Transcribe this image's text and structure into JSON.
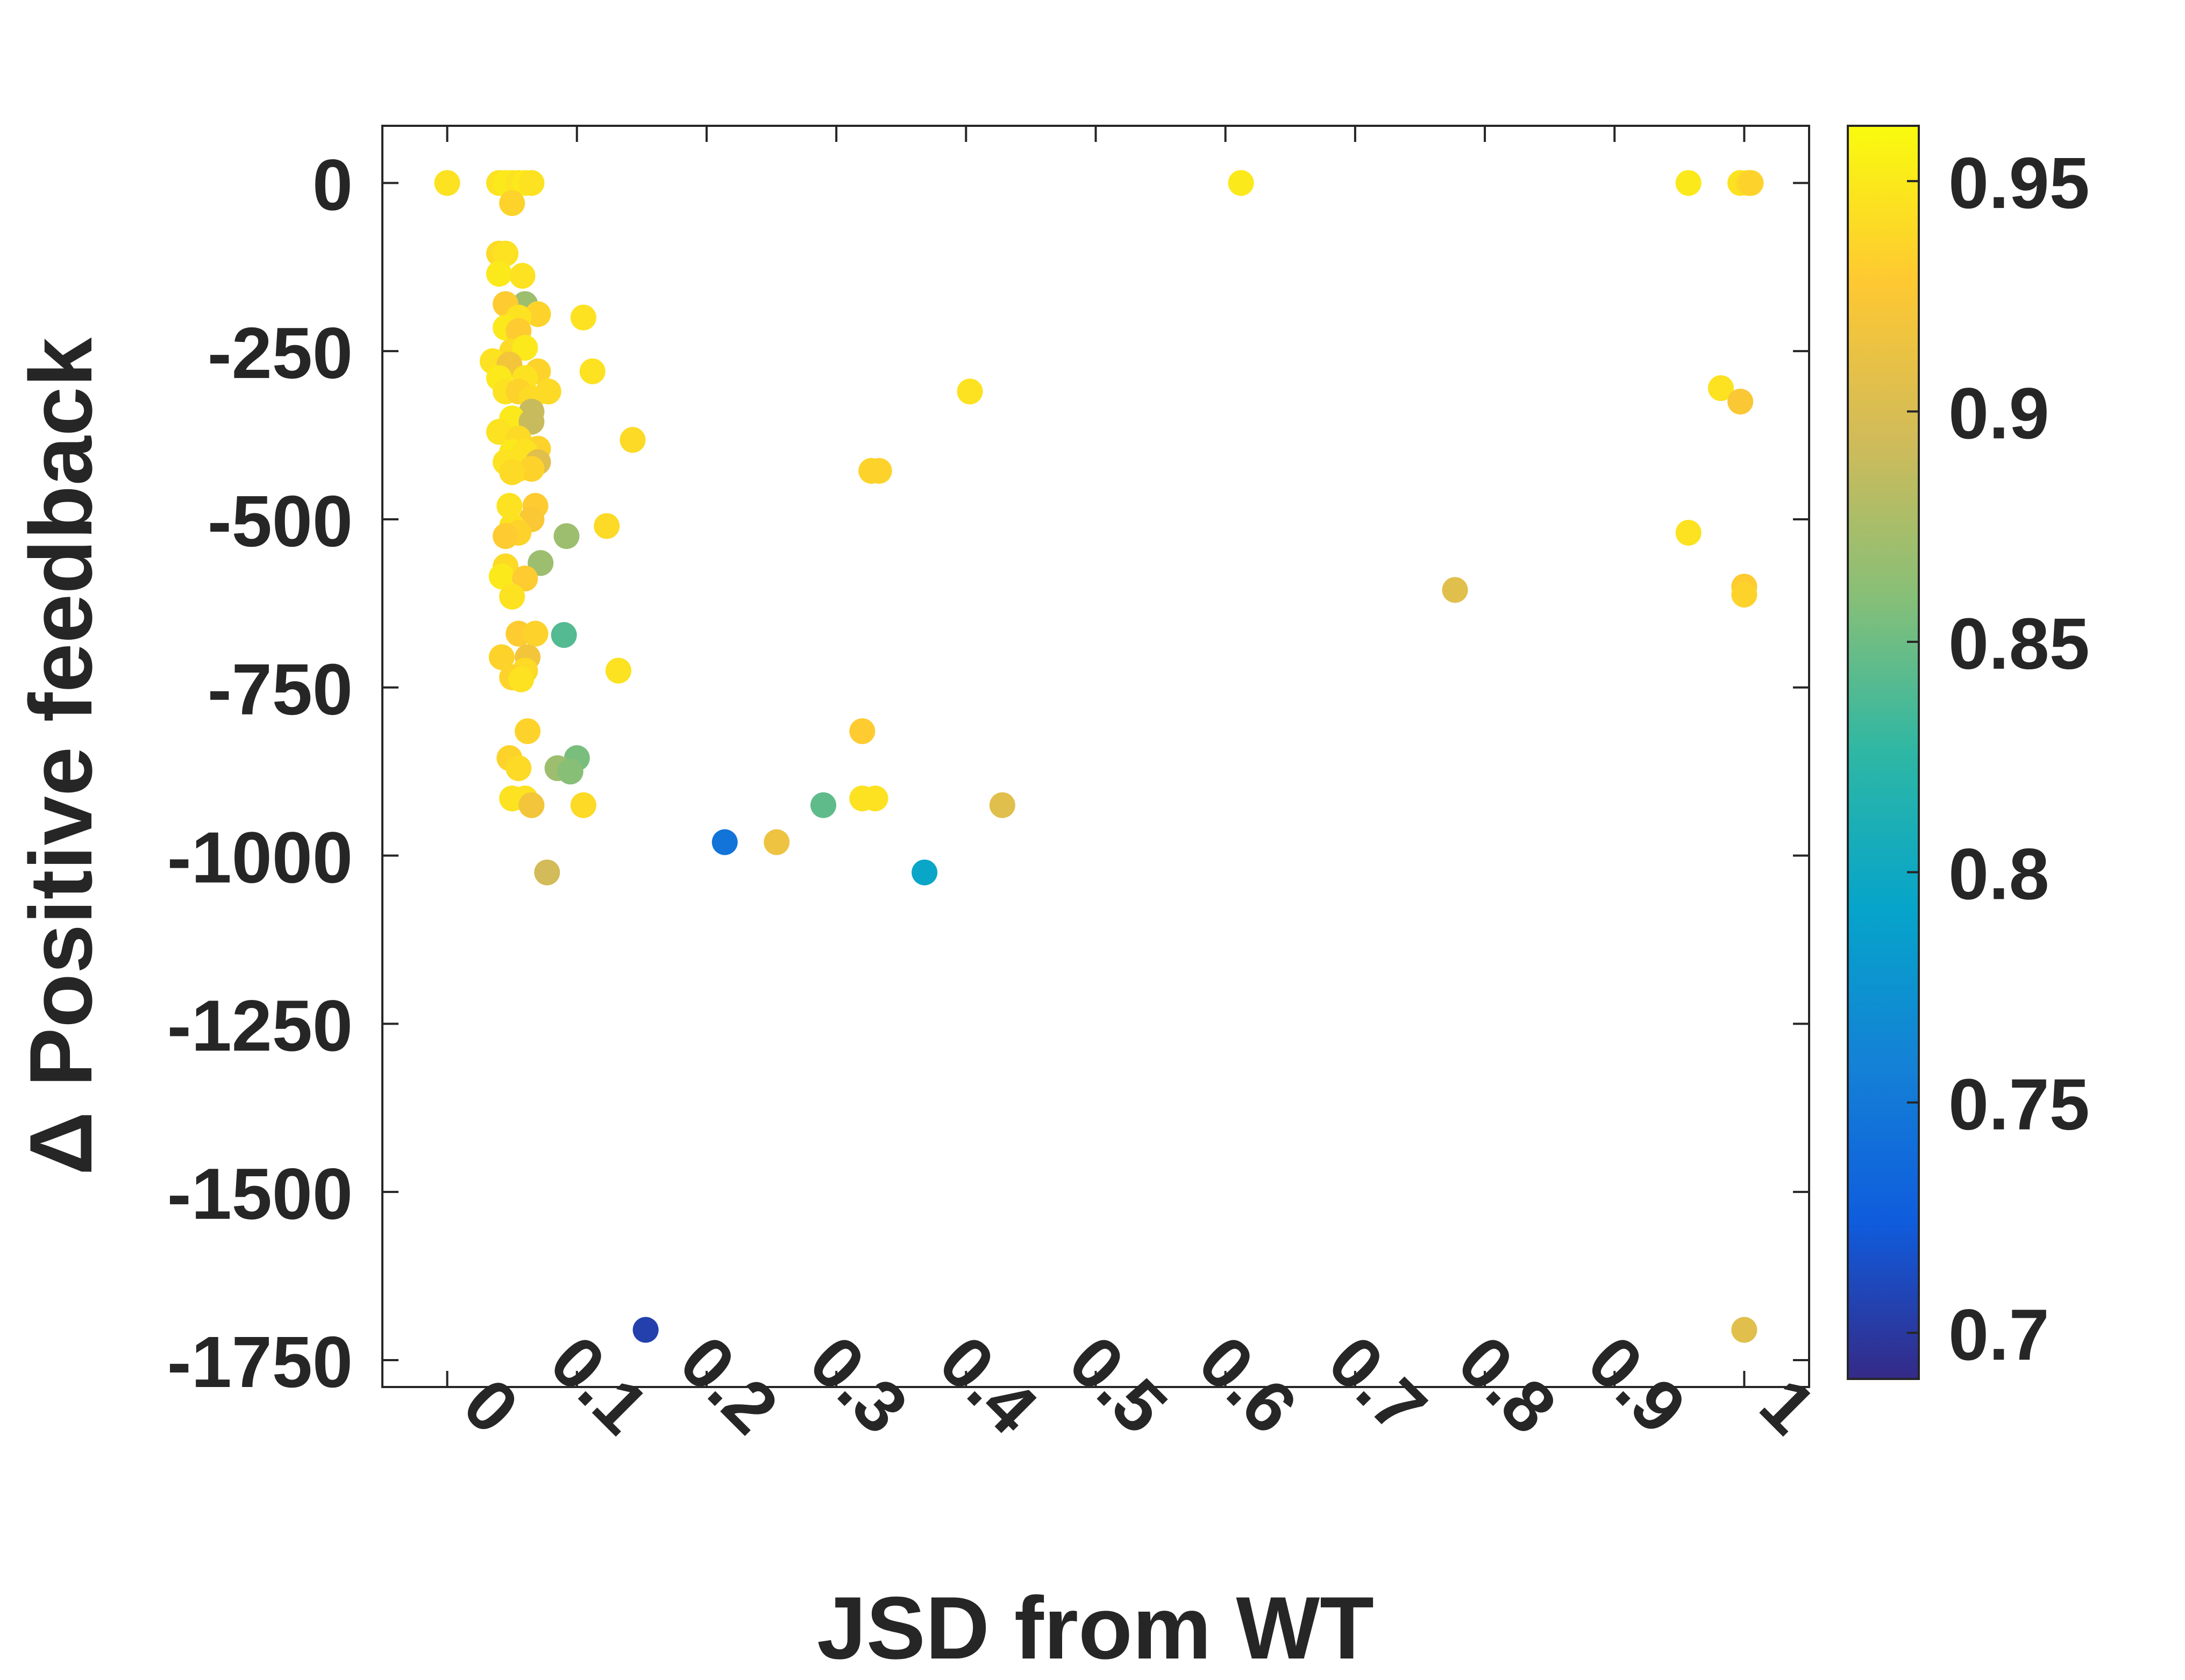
{
  "chart_data": {
    "type": "scatter",
    "title": "",
    "xlabel": "JSD from WT",
    "ylabel": "Δ Positive feedback",
    "xlim": [
      -0.05,
      1.05
    ],
    "ylim": [
      -1790,
      85
    ],
    "xticks": [
      0,
      0.1,
      0.2,
      0.3,
      0.4,
      0.5,
      0.6,
      0.7,
      0.8,
      0.9,
      1
    ],
    "xtick_labels": [
      "0",
      "0.1",
      "0.2",
      "0.3",
      "0.4",
      "0.5",
      "0.6",
      "0.7",
      "0.8",
      "0.9",
      "1"
    ],
    "yticks": [
      0,
      -250,
      -500,
      -750,
      -1000,
      -1250,
      -1500,
      -1750
    ],
    "ytick_labels": [
      "0",
      "-250",
      "-500",
      "-750",
      "-1000",
      "-1250",
      "-1500",
      "-1750"
    ],
    "grid": false,
    "colorbar": {
      "colormap": "parula",
      "clim": [
        0.69,
        0.962
      ],
      "ticks": [
        0.7,
        0.75,
        0.8,
        0.85,
        0.9,
        0.95
      ],
      "tick_labels": [
        "0.7",
        "0.75",
        "0.8",
        "0.85",
        "0.9",
        "0.95"
      ],
      "colors": [
        "#352a87",
        "#0f5cdd",
        "#1481d6",
        "#06a4ca",
        "#2eb7a4",
        "#87bf77",
        "#d1bb59",
        "#fec832",
        "#f9fb0e"
      ]
    },
    "points": [
      {
        "x": 0.0,
        "y": 0,
        "c": 0.945
      },
      {
        "x": 0.04,
        "y": 0,
        "c": 0.945
      },
      {
        "x": 0.045,
        "y": 0,
        "c": 0.95
      },
      {
        "x": 0.05,
        "y": 0,
        "c": 0.95
      },
      {
        "x": 0.055,
        "y": 0,
        "c": 0.945
      },
      {
        "x": 0.06,
        "y": 0,
        "c": 0.95
      },
      {
        "x": 0.065,
        "y": 0,
        "c": 0.945
      },
      {
        "x": 0.05,
        "y": -30,
        "c": 0.935
      },
      {
        "x": 0.04,
        "y": -105,
        "c": 0.94
      },
      {
        "x": 0.045,
        "y": -105,
        "c": 0.945
      },
      {
        "x": 0.04,
        "y": -135,
        "c": 0.95
      },
      {
        "x": 0.058,
        "y": -138,
        "c": 0.945
      },
      {
        "x": 0.06,
        "y": -180,
        "c": 0.87
      },
      {
        "x": 0.045,
        "y": -180,
        "c": 0.93
      },
      {
        "x": 0.07,
        "y": -195,
        "c": 0.935
      },
      {
        "x": 0.055,
        "y": -200,
        "c": 0.945
      },
      {
        "x": 0.105,
        "y": -200,
        "c": 0.945
      },
      {
        "x": 0.045,
        "y": -215,
        "c": 0.95
      },
      {
        "x": 0.055,
        "y": -220,
        "c": 0.93
      },
      {
        "x": 0.05,
        "y": -250,
        "c": 0.94
      },
      {
        "x": 0.06,
        "y": -245,
        "c": 0.95
      },
      {
        "x": 0.035,
        "y": -265,
        "c": 0.945
      },
      {
        "x": 0.048,
        "y": -270,
        "c": 0.92
      },
      {
        "x": 0.07,
        "y": -280,
        "c": 0.935
      },
      {
        "x": 0.112,
        "y": -280,
        "c": 0.945
      },
      {
        "x": 0.04,
        "y": -290,
        "c": 0.95
      },
      {
        "x": 0.06,
        "y": -290,
        "c": 0.945
      },
      {
        "x": 0.045,
        "y": -310,
        "c": 0.945
      },
      {
        "x": 0.055,
        "y": -310,
        "c": 0.935
      },
      {
        "x": 0.078,
        "y": -310,
        "c": 0.94
      },
      {
        "x": 0.065,
        "y": -320,
        "c": 0.94
      },
      {
        "x": 0.065,
        "y": -340,
        "c": 0.89
      },
      {
        "x": 0.05,
        "y": -350,
        "c": 0.95
      },
      {
        "x": 0.065,
        "y": -355,
        "c": 0.89
      },
      {
        "x": 0.04,
        "y": -370,
        "c": 0.945
      },
      {
        "x": 0.055,
        "y": -380,
        "c": 0.94
      },
      {
        "x": 0.07,
        "y": -395,
        "c": 0.935
      },
      {
        "x": 0.05,
        "y": -400,
        "c": 0.95
      },
      {
        "x": 0.06,
        "y": -400,
        "c": 0.945
      },
      {
        "x": 0.045,
        "y": -415,
        "c": 0.945
      },
      {
        "x": 0.07,
        "y": -415,
        "c": 0.905
      },
      {
        "x": 0.055,
        "y": -425,
        "c": 0.945
      },
      {
        "x": 0.065,
        "y": -425,
        "c": 0.935
      },
      {
        "x": 0.05,
        "y": -430,
        "c": 0.94
      },
      {
        "x": 0.143,
        "y": -382,
        "c": 0.94
      },
      {
        "x": 0.048,
        "y": -480,
        "c": 0.945
      },
      {
        "x": 0.068,
        "y": -480,
        "c": 0.93
      },
      {
        "x": 0.065,
        "y": -500,
        "c": 0.925
      },
      {
        "x": 0.05,
        "y": -510,
        "c": 0.945
      },
      {
        "x": 0.055,
        "y": -520,
        "c": 0.935
      },
      {
        "x": 0.045,
        "y": -525,
        "c": 0.93
      },
      {
        "x": 0.092,
        "y": -525,
        "c": 0.87
      },
      {
        "x": 0.123,
        "y": -510,
        "c": 0.94
      },
      {
        "x": 0.072,
        "y": -565,
        "c": 0.87
      },
      {
        "x": 0.045,
        "y": -570,
        "c": 0.94
      },
      {
        "x": 0.042,
        "y": -585,
        "c": 0.95
      },
      {
        "x": 0.06,
        "y": -588,
        "c": 0.93
      },
      {
        "x": 0.05,
        "y": -615,
        "c": 0.945
      },
      {
        "x": 0.055,
        "y": -670,
        "c": 0.93
      },
      {
        "x": 0.068,
        "y": -670,
        "c": 0.935
      },
      {
        "x": 0.09,
        "y": -672,
        "c": 0.84
      },
      {
        "x": 0.042,
        "y": -705,
        "c": 0.935
      },
      {
        "x": 0.062,
        "y": -705,
        "c": 0.92
      },
      {
        "x": 0.06,
        "y": -725,
        "c": 0.94
      },
      {
        "x": 0.05,
        "y": -735,
        "c": 0.935
      },
      {
        "x": 0.057,
        "y": -738,
        "c": 0.945
      },
      {
        "x": 0.132,
        "y": -725,
        "c": 0.945
      },
      {
        "x": 0.062,
        "y": -815,
        "c": 0.935
      },
      {
        "x": 0.048,
        "y": -855,
        "c": 0.935
      },
      {
        "x": 0.1,
        "y": -855,
        "c": 0.855
      },
      {
        "x": 0.055,
        "y": -870,
        "c": 0.94
      },
      {
        "x": 0.085,
        "y": -870,
        "c": 0.87
      },
      {
        "x": 0.095,
        "y": -875,
        "c": 0.86
      },
      {
        "x": 0.05,
        "y": -915,
        "c": 0.945
      },
      {
        "x": 0.06,
        "y": -915,
        "c": 0.945
      },
      {
        "x": 0.065,
        "y": -925,
        "c": 0.92
      },
      {
        "x": 0.105,
        "y": -925,
        "c": 0.94
      },
      {
        "x": 0.077,
        "y": -1025,
        "c": 0.895
      },
      {
        "x": 0.153,
        "y": -1705,
        "c": 0.705
      },
      {
        "x": 0.214,
        "y": -980,
        "c": 0.745
      },
      {
        "x": 0.254,
        "y": -980,
        "c": 0.915
      },
      {
        "x": 0.29,
        "y": -925,
        "c": 0.845
      },
      {
        "x": 0.32,
        "y": -815,
        "c": 0.93
      },
      {
        "x": 0.32,
        "y": -915,
        "c": 0.945
      },
      {
        "x": 0.33,
        "y": -915,
        "c": 0.945
      },
      {
        "x": 0.327,
        "y": -428,
        "c": 0.935
      },
      {
        "x": 0.333,
        "y": -428,
        "c": 0.935
      },
      {
        "x": 0.368,
        "y": -1025,
        "c": 0.795
      },
      {
        "x": 0.403,
        "y": -310,
        "c": 0.945
      },
      {
        "x": 0.428,
        "y": -925,
        "c": 0.905
      },
      {
        "x": 0.612,
        "y": 0,
        "c": 0.95
      },
      {
        "x": 0.777,
        "y": -605,
        "c": 0.905
      },
      {
        "x": 0.957,
        "y": 0,
        "c": 0.95
      },
      {
        "x": 0.997,
        "y": 0,
        "c": 0.945
      },
      {
        "x": 1.003,
        "y": 0,
        "c": 0.94
      },
      {
        "x": 1.005,
        "y": 0,
        "c": 0.935
      },
      {
        "x": 0.982,
        "y": -305,
        "c": 0.945
      },
      {
        "x": 0.997,
        "y": -325,
        "c": 0.925
      },
      {
        "x": 0.957,
        "y": -520,
        "c": 0.945
      },
      {
        "x": 1.0,
        "y": -600,
        "c": 0.93
      },
      {
        "x": 1.0,
        "y": -612,
        "c": 0.935
      },
      {
        "x": 1.0,
        "y": -1705,
        "c": 0.905
      }
    ]
  }
}
